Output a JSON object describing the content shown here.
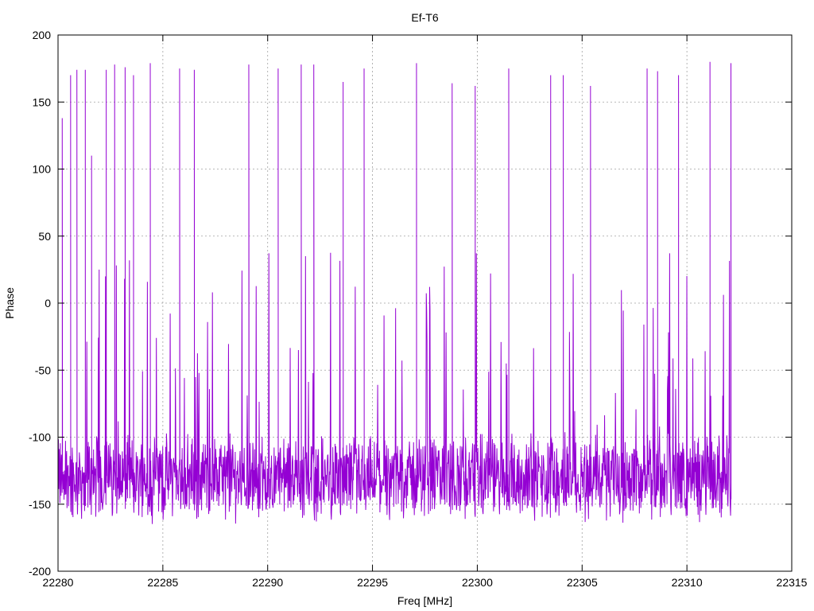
{
  "chart_data": {
    "type": "line",
    "title": "Ef-T6",
    "xlabel": "Freq [MHz]",
    "ylabel": "Phase",
    "xlim": [
      22280,
      22315
    ],
    "ylim": [
      -200,
      200
    ],
    "xticks": [
      22280,
      22285,
      22290,
      22295,
      22300,
      22305,
      22310,
      22315
    ],
    "yticks": [
      -200,
      -150,
      -100,
      -50,
      0,
      50,
      100,
      150,
      200
    ],
    "grid": true,
    "series": [
      {
        "color": "#9400d3",
        "x_start": 22280,
        "x_end": 22312.1,
        "baseline_phase": -130,
        "noise_amplitude": 25,
        "spike_peaks": [
          {
            "x": 22280.2,
            "y": 138
          },
          {
            "x": 22280.6,
            "y": 170
          },
          {
            "x": 22280.9,
            "y": 174
          },
          {
            "x": 22281.3,
            "y": 174
          },
          {
            "x": 22281.6,
            "y": 110
          },
          {
            "x": 22282.3,
            "y": 174
          },
          {
            "x": 22282.7,
            "y": 178
          },
          {
            "x": 22283.2,
            "y": 176
          },
          {
            "x": 22283.6,
            "y": 170
          },
          {
            "x": 22284.4,
            "y": 179
          },
          {
            "x": 22285.8,
            "y": 175
          },
          {
            "x": 22286.5,
            "y": 174
          },
          {
            "x": 22289.1,
            "y": 178
          },
          {
            "x": 22290.5,
            "y": 175
          },
          {
            "x": 22291.6,
            "y": 178
          },
          {
            "x": 22292.2,
            "y": 178
          },
          {
            "x": 22293.6,
            "y": 165
          },
          {
            "x": 22294.6,
            "y": 175
          },
          {
            "x": 22297.1,
            "y": 179
          },
          {
            "x": 22298.8,
            "y": 164
          },
          {
            "x": 22299.9,
            "y": 162
          },
          {
            "x": 22301.5,
            "y": 175
          },
          {
            "x": 22303.5,
            "y": 170
          },
          {
            "x": 22304.1,
            "y": 170
          },
          {
            "x": 22305.4,
            "y": 162
          },
          {
            "x": 22308.1,
            "y": 175
          },
          {
            "x": 22308.6,
            "y": 173
          },
          {
            "x": 22309.6,
            "y": 170
          },
          {
            "x": 22311.1,
            "y": 180
          },
          {
            "x": 22312.1,
            "y": 179
          }
        ]
      }
    ]
  }
}
